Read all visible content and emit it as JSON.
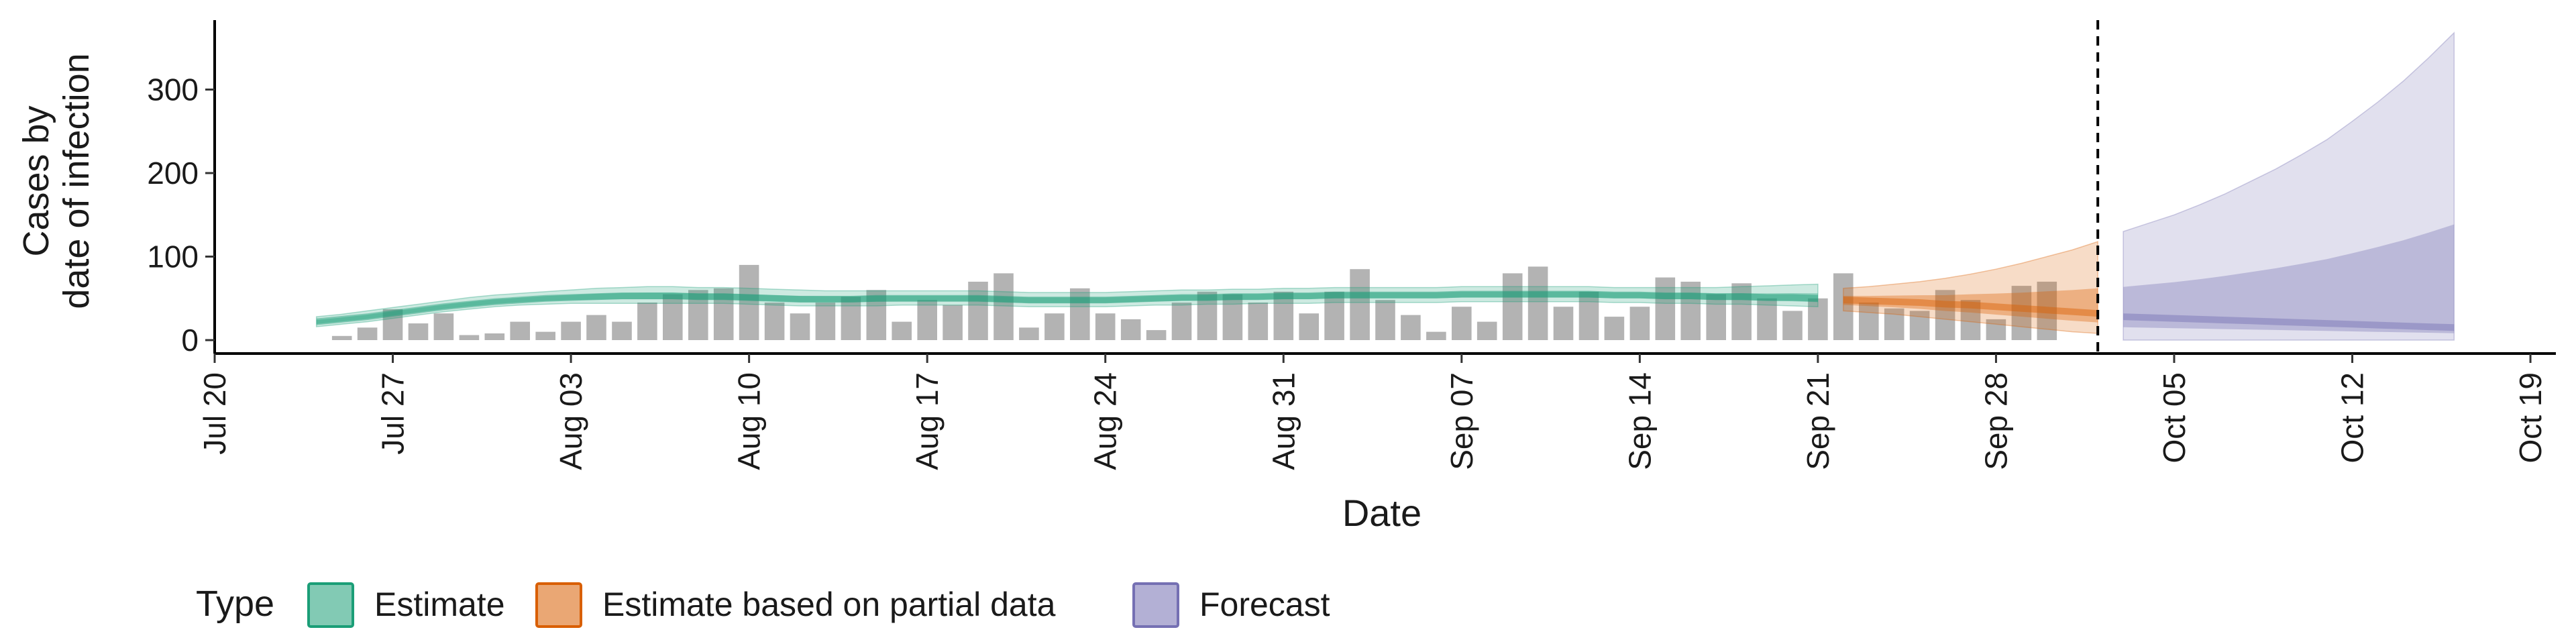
{
  "chart_data": {
    "type": "bar",
    "x_type": "date",
    "xlabel": "Date",
    "ylabel": [
      "Cases by",
      "date of infection"
    ],
    "ylim": [
      0,
      385
    ],
    "xlim": [
      "2020-07-20",
      "2020-10-20"
    ],
    "x_ticks": [
      {
        "date": "2020-07-20",
        "label": "Jul 20"
      },
      {
        "date": "2020-07-27",
        "label": "Jul 27"
      },
      {
        "date": "2020-08-03",
        "label": "Aug 03"
      },
      {
        "date": "2020-08-10",
        "label": "Aug 10"
      },
      {
        "date": "2020-08-17",
        "label": "Aug 17"
      },
      {
        "date": "2020-08-24",
        "label": "Aug 24"
      },
      {
        "date": "2020-08-31",
        "label": "Aug 31"
      },
      {
        "date": "2020-09-07",
        "label": "Sep 07"
      },
      {
        "date": "2020-09-14",
        "label": "Sep 14"
      },
      {
        "date": "2020-09-21",
        "label": "Sep 21"
      },
      {
        "date": "2020-09-28",
        "label": "Sep 28"
      },
      {
        "date": "2020-10-05",
        "label": "Oct 05"
      },
      {
        "date": "2020-10-12",
        "label": "Oct 12"
      },
      {
        "date": "2020-10-19",
        "label": "Oct 19"
      }
    ],
    "y_ticks": [
      0,
      100,
      200,
      300
    ],
    "grid": false,
    "legend": {
      "position": "bottom",
      "title": "Type",
      "entries": [
        {
          "label": "Estimate",
          "color": "#1b9e77"
        },
        {
          "label": "Estimate based on partial data",
          "color": "#d95f02"
        },
        {
          "label": "Forecast",
          "color": "#7570b3"
        }
      ]
    },
    "observed_bar_color": "#b3b3b3",
    "reference_line": {
      "date": "2020-10-02",
      "style": "dashed"
    },
    "observed_cases": {
      "start_date": "2020-07-25",
      "values": [
        5,
        15,
        37,
        20,
        32,
        6,
        8,
        22,
        10,
        22,
        30,
        22,
        45,
        55,
        60,
        62,
        90,
        45,
        32,
        45,
        52,
        60,
        22,
        48,
        42,
        70,
        80,
        15,
        32,
        62,
        32,
        25,
        12,
        45,
        58,
        55,
        45,
        58,
        32,
        58,
        85,
        48,
        30,
        10,
        40,
        22,
        80,
        88,
        40,
        58,
        28,
        40,
        75,
        70,
        55,
        68,
        50,
        35,
        50,
        80,
        45,
        38,
        35,
        60,
        48,
        25,
        65,
        70
      ]
    },
    "series": [
      {
        "name": "Estimate",
        "start_date": "2020-07-24",
        "median": [
          22,
          25,
          28,
          32,
          36,
          40,
          43,
          46,
          48,
          50,
          51,
          52,
          53,
          53,
          53,
          52,
          52,
          51,
          50,
          49,
          49,
          49,
          50,
          50,
          50,
          50,
          50,
          49,
          48,
          48,
          48,
          48,
          49,
          50,
          51,
          51,
          52,
          52,
          53,
          53,
          54,
          54,
          54,
          54,
          54,
          55,
          55,
          55,
          55,
          55,
          55,
          54,
          54,
          53,
          53,
          52,
          52,
          51,
          51,
          50
        ],
        "lower90": [
          16,
          19,
          22,
          26,
          30,
          34,
          37,
          40,
          42,
          43,
          44,
          44,
          44,
          44,
          44,
          44,
          44,
          43,
          42,
          41,
          41,
          41,
          41,
          42,
          42,
          42,
          42,
          41,
          40,
          40,
          40,
          40,
          41,
          42,
          42,
          43,
          43,
          44,
          44,
          44,
          45,
          45,
          45,
          45,
          45,
          46,
          46,
          46,
          46,
          46,
          46,
          45,
          45,
          44,
          44,
          43,
          43,
          42,
          41,
          40
        ],
        "upper90": [
          28,
          31,
          35,
          39,
          43,
          47,
          51,
          54,
          56,
          58,
          60,
          62,
          63,
          64,
          64,
          63,
          63,
          62,
          61,
          60,
          59,
          59,
          59,
          59,
          59,
          59,
          59,
          58,
          57,
          57,
          57,
          57,
          58,
          59,
          60,
          60,
          61,
          61,
          62,
          62,
          63,
          63,
          63,
          63,
          63,
          64,
          64,
          64,
          64,
          64,
          64,
          63,
          63,
          63,
          63,
          63,
          64,
          65,
          66,
          67
        ]
      },
      {
        "name": "Estimate based on partial data",
        "start_date": "2020-09-22",
        "median": [
          48,
          47,
          46,
          45,
          43,
          42,
          40,
          38,
          36,
          34,
          32
        ],
        "lower90": [
          35,
          33,
          31,
          28,
          25,
          22,
          19,
          16,
          13,
          10,
          8
        ],
        "upper90": [
          62,
          64,
          67,
          70,
          74,
          79,
          85,
          92,
          100,
          108,
          118
        ]
      },
      {
        "name": "Forecast",
        "start_date": "2020-10-03",
        "median": [
          28,
          27,
          26,
          25,
          24,
          23,
          22,
          21,
          20,
          19,
          18,
          17,
          16,
          15
        ],
        "lower90": [
          0,
          0,
          0,
          0,
          0,
          0,
          0,
          0,
          0,
          0,
          0,
          0,
          0,
          0
        ],
        "upper90": [
          130,
          140,
          150,
          162,
          175,
          190,
          205,
          222,
          240,
          262,
          285,
          310,
          338,
          368
        ]
      }
    ]
  }
}
